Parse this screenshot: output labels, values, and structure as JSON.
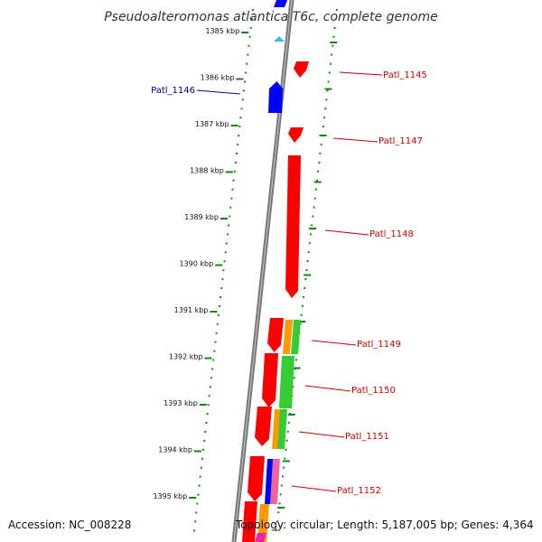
{
  "title": "Pseudoalteromonas atlantica T6c, complete genome",
  "accession": "Accession: NC_008228",
  "summary": "Topology: circular; Length: 5,187,005 bp; Genes: 4,364",
  "colors": {
    "backbone": "#888888",
    "forward_genes": "#ff0000",
    "reverse_genes": "#0000ff",
    "label_forward": "#cc0000",
    "label_reverse": "#000099",
    "tick": "#118811",
    "orange": "#ff9900",
    "green": "#33cc33",
    "cyan": "#33bbee",
    "pink": "#ee6699",
    "magenta": "#ee22aa"
  },
  "position_ticks": [
    "1385 kbp",
    "1386 kbp",
    "1387 kbp",
    "1388 kbp",
    "1389 kbp",
    "1390 kbp",
    "1391 kbp",
    "1392 kbp",
    "1393 kbp",
    "1394 kbp",
    "1395 kbp"
  ],
  "gene_labels": [
    {
      "name": "Patl_1145",
      "strand": "forward"
    },
    {
      "name": "Patl_1146",
      "strand": "reverse"
    },
    {
      "name": "Patl_1147",
      "strand": "forward"
    },
    {
      "name": "Patl_1148",
      "strand": "forward"
    },
    {
      "name": "Patl_1149",
      "strand": "forward"
    },
    {
      "name": "Patl_1150",
      "strand": "forward"
    },
    {
      "name": "Patl_1151",
      "strand": "forward"
    },
    {
      "name": "Patl_1152",
      "strand": "forward"
    }
  ]
}
